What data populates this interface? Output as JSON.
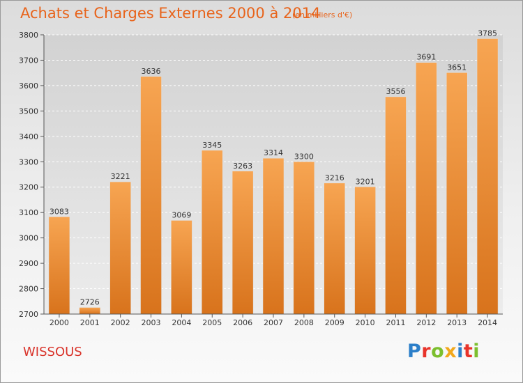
{
  "header": {
    "title": "Achats et Charges Externes 2000 à 2014",
    "subtitle": "(en milliers d'€)"
  },
  "footer": {
    "commune": "WISSOUS",
    "logo_letters": [
      "P",
      "r",
      "o",
      "x",
      "i",
      "t",
      "i"
    ]
  },
  "colors": {
    "bar_light": "#f7a552",
    "bar_dark": "#d8731c",
    "title": "#e8631a",
    "commune": "#d9342b"
  },
  "chart_data": {
    "type": "bar",
    "title": "Achats et Charges Externes 2000 à 2014",
    "subtitle": "(en milliers d'€)",
    "categories": [
      "2000",
      "2001",
      "2002",
      "2003",
      "2004",
      "2005",
      "2006",
      "2007",
      "2008",
      "2009",
      "2010",
      "2011",
      "2012",
      "2013",
      "2014"
    ],
    "values": [
      3083,
      2726,
      3221,
      3636,
      3069,
      3345,
      3263,
      3314,
      3300,
      3216,
      3201,
      3556,
      3691,
      3651,
      3785
    ],
    "ylim": [
      2700,
      3800
    ],
    "yticks": [
      2700,
      2800,
      2900,
      3000,
      3100,
      3200,
      3300,
      3400,
      3500,
      3600,
      3700,
      3800
    ],
    "grid": true,
    "legend": "none"
  }
}
